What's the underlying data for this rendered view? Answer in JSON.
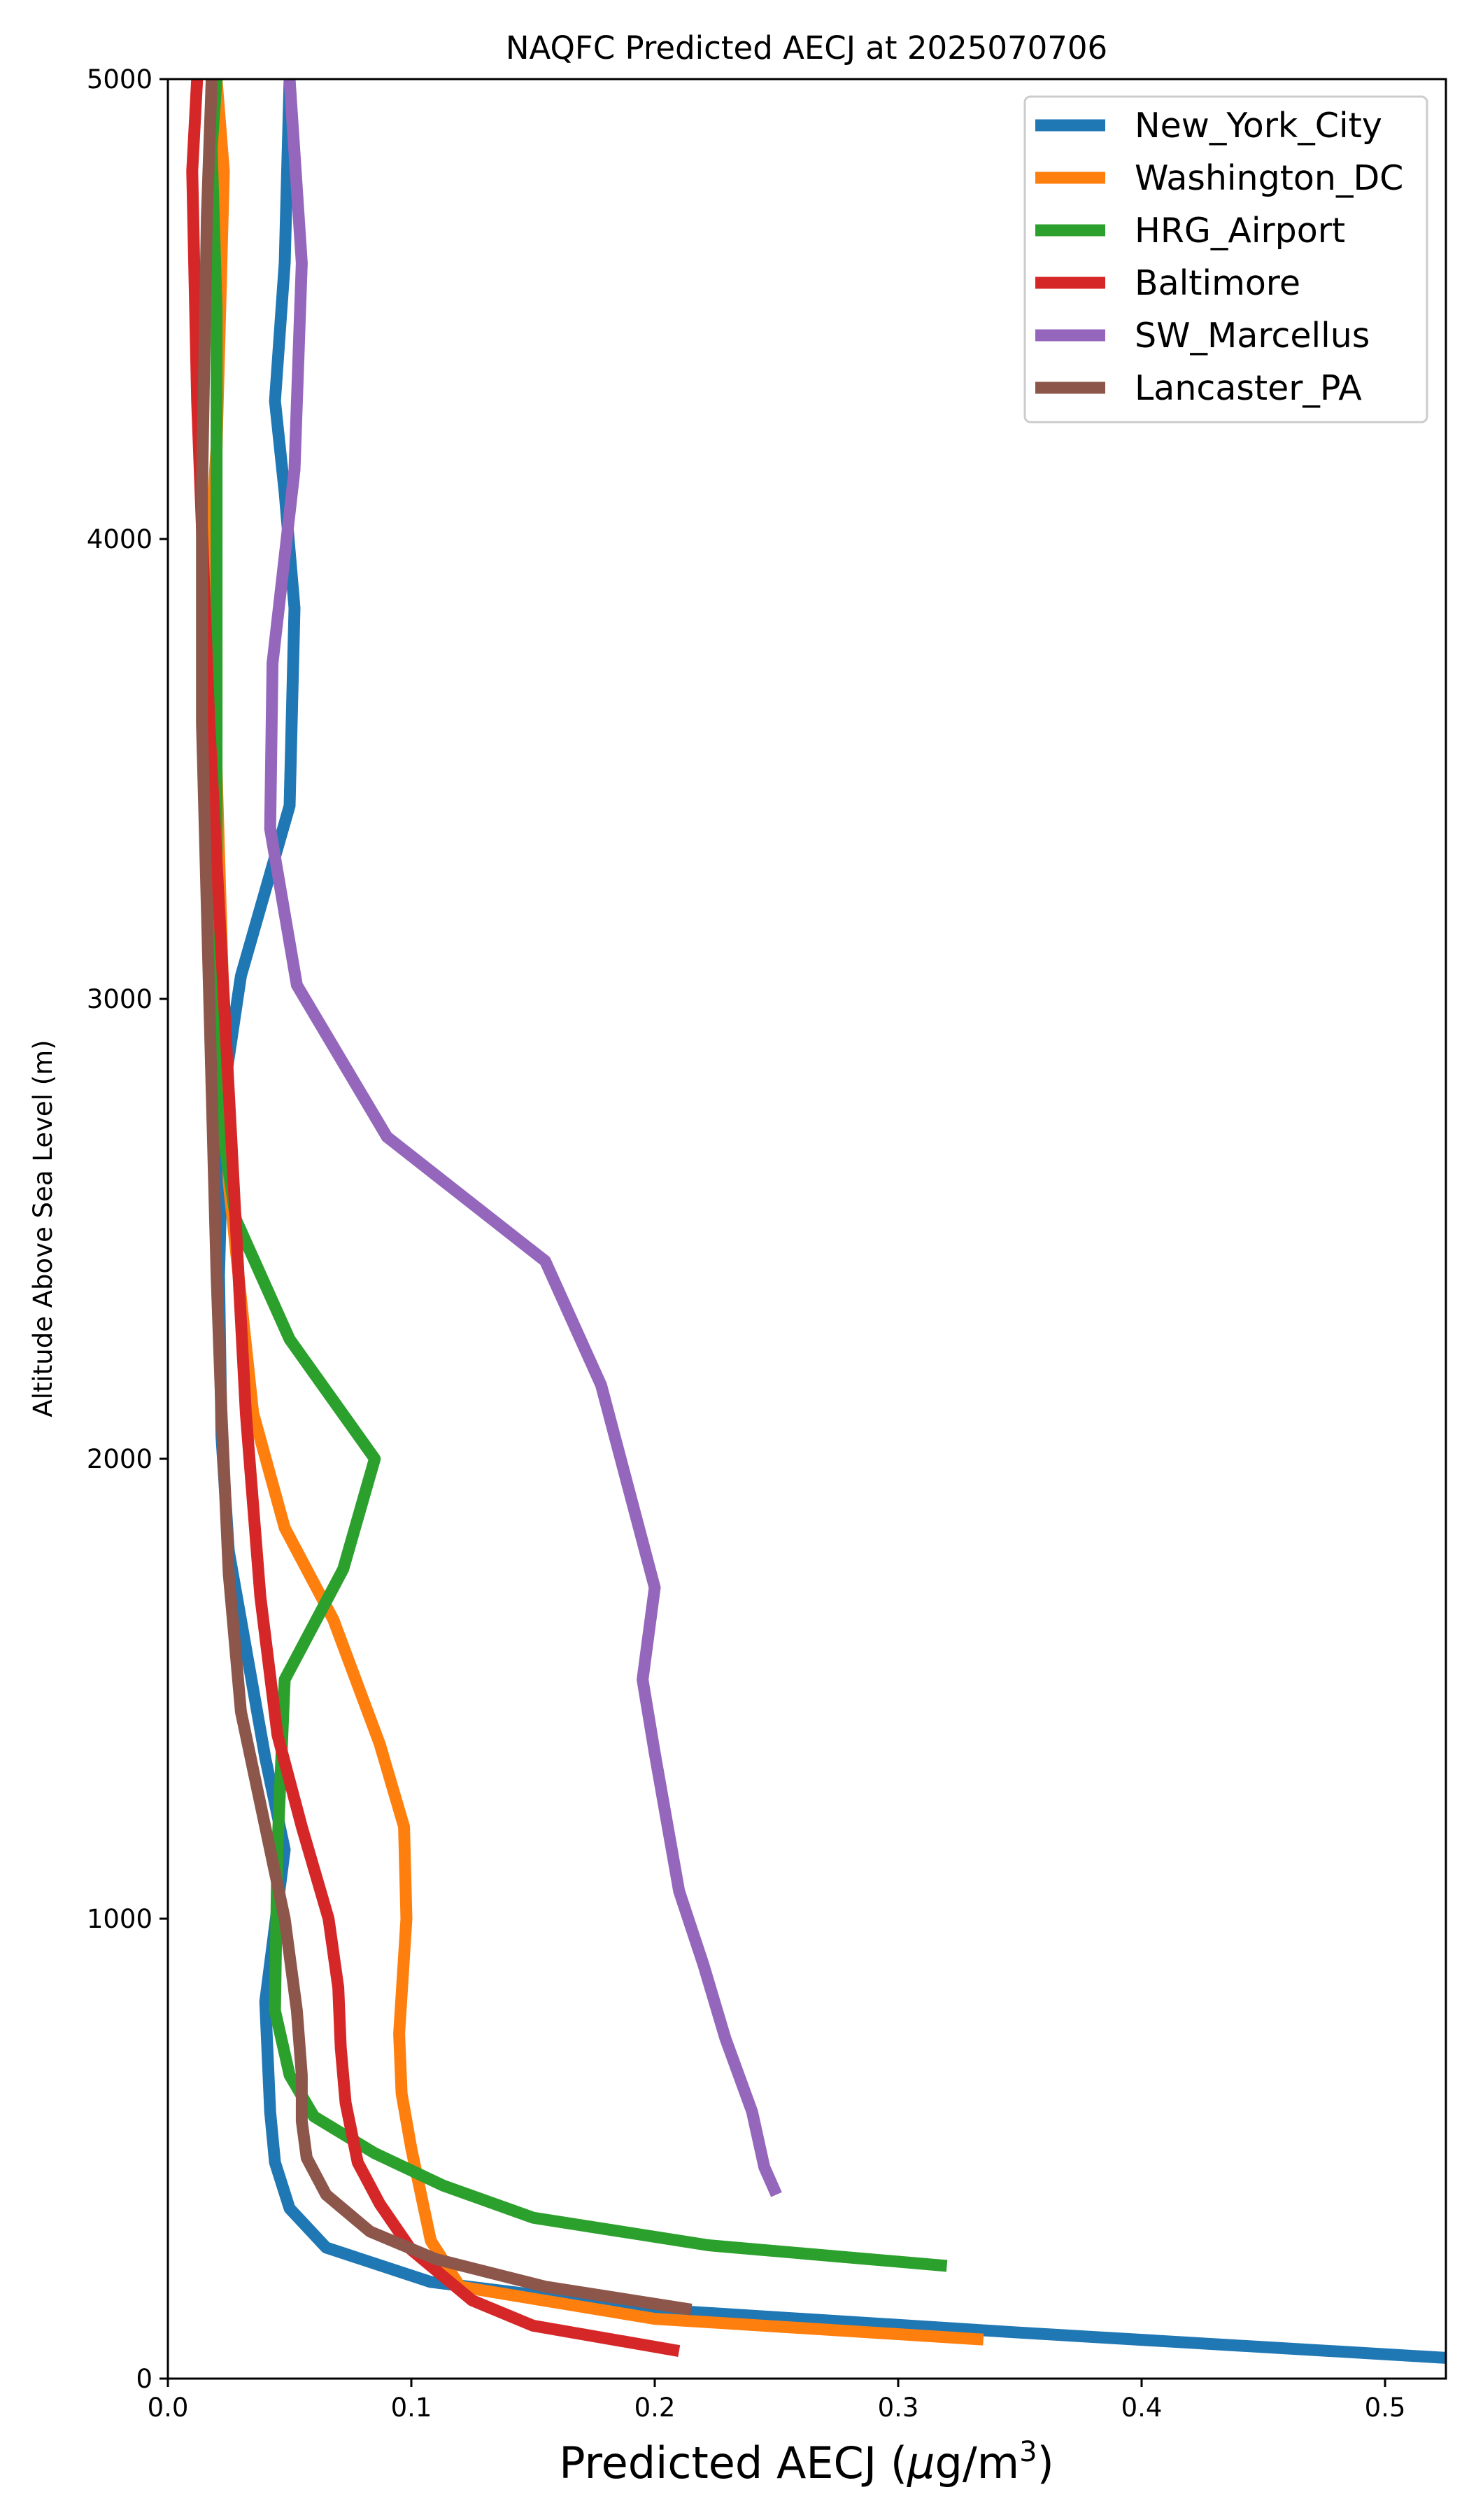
{
  "colors": {
    "New_York_City": "#1f77b4",
    "Washington_DC": "#ff7f0e",
    "HRG_Airport": "#2ca02c",
    "Baltimore": "#d62728",
    "SW_Marcellus": "#9467bd",
    "Lancaster_PA": "#8c564b"
  },
  "chart_data": {
    "type": "line",
    "title": "NAQFC Predicted AECJ at 2025070706",
    "xlabel_main": "Predicted AECJ (",
    "xlabel_mu": "μ",
    "xlabel_unit": "g/m",
    "xlabel_sup": "3",
    "xlabel_close": ")",
    "ylabel": "Altitude Above Sea Level (m)",
    "xlim": [
      0,
      0.525
    ],
    "ylim": [
      0,
      5000
    ],
    "xticks": [
      "0.0",
      "0.1",
      "0.2",
      "0.3",
      "0.4",
      "0.5"
    ],
    "yticks": [
      "0",
      "1000",
      "2000",
      "3000",
      "4000",
      "5000"
    ],
    "grid": false,
    "legend_position": "top-right",
    "series": [
      {
        "name": "New_York_City",
        "color_key": "New_York_City",
        "points": [
          [
            0.525,
            45
          ],
          [
            0.35,
            100
          ],
          [
            0.2,
            150
          ],
          [
            0.108,
            210
          ],
          [
            0.065,
            285
          ],
          [
            0.05,
            370
          ],
          [
            0.044,
            470
          ],
          [
            0.042,
            580
          ],
          [
            0.04,
            820
          ],
          [
            0.048,
            1150
          ],
          [
            0.04,
            1350
          ],
          [
            0.025,
            1800
          ],
          [
            0.022,
            2050
          ],
          [
            0.021,
            2400
          ],
          [
            0.023,
            2800
          ],
          [
            0.03,
            3050
          ],
          [
            0.05,
            3420
          ],
          [
            0.052,
            3850
          ],
          [
            0.048,
            4100
          ],
          [
            0.044,
            4300
          ],
          [
            0.048,
            4600
          ],
          [
            0.05,
            5000
          ]
        ]
      },
      {
        "name": "Washington_DC",
        "color_key": "Washington_DC",
        "points": [
          [
            0.335,
            85
          ],
          [
            0.2,
            130
          ],
          [
            0.12,
            200
          ],
          [
            0.108,
            300
          ],
          [
            0.1,
            500
          ],
          [
            0.096,
            620
          ],
          [
            0.095,
            750
          ],
          [
            0.098,
            1000
          ],
          [
            0.097,
            1200
          ],
          [
            0.087,
            1380
          ],
          [
            0.068,
            1650
          ],
          [
            0.048,
            1850
          ],
          [
            0.035,
            2100
          ],
          [
            0.025,
            2600
          ],
          [
            0.02,
            3500
          ],
          [
            0.017,
            3950
          ],
          [
            0.02,
            4200
          ],
          [
            0.023,
            4800
          ],
          [
            0.02,
            5000
          ]
        ]
      },
      {
        "name": "HRG_Airport",
        "color_key": "HRG_Airport",
        "points": [
          [
            0.32,
            245
          ],
          [
            0.222,
            290
          ],
          [
            0.15,
            350
          ],
          [
            0.113,
            420
          ],
          [
            0.085,
            490
          ],
          [
            0.06,
            570
          ],
          [
            0.05,
            660
          ],
          [
            0.044,
            800
          ],
          [
            0.045,
            1150
          ],
          [
            0.048,
            1520
          ],
          [
            0.072,
            1760
          ],
          [
            0.085,
            2000
          ],
          [
            0.05,
            2260
          ],
          [
            0.028,
            2520
          ],
          [
            0.02,
            2800
          ],
          [
            0.02,
            4500
          ],
          [
            0.018,
            4850
          ],
          [
            0.02,
            5000
          ]
        ]
      },
      {
        "name": "Baltimore",
        "color_key": "Baltimore",
        "points": [
          [
            0.21,
            60
          ],
          [
            0.15,
            115
          ],
          [
            0.125,
            170
          ],
          [
            0.1,
            280
          ],
          [
            0.087,
            380
          ],
          [
            0.078,
            470
          ],
          [
            0.073,
            600
          ],
          [
            0.071,
            720
          ],
          [
            0.07,
            850
          ],
          [
            0.066,
            1000
          ],
          [
            0.055,
            1200
          ],
          [
            0.045,
            1400
          ],
          [
            0.038,
            1700
          ],
          [
            0.032,
            2100
          ],
          [
            0.026,
            2700
          ],
          [
            0.017,
            3600
          ],
          [
            0.012,
            4300
          ],
          [
            0.01,
            4800
          ],
          [
            0.012,
            5000
          ]
        ]
      },
      {
        "name": "SW_Marcellus",
        "color_key": "SW_Marcellus",
        "points": [
          [
            0.25,
            400
          ],
          [
            0.245,
            460
          ],
          [
            0.24,
            580
          ],
          [
            0.229,
            740
          ],
          [
            0.22,
            900
          ],
          [
            0.21,
            1060
          ],
          [
            0.2,
            1360
          ],
          [
            0.195,
            1520
          ],
          [
            0.2,
            1720
          ],
          [
            0.178,
            2160
          ],
          [
            0.155,
            2430
          ],
          [
            0.09,
            2700
          ],
          [
            0.053,
            3030
          ],
          [
            0.042,
            3370
          ],
          [
            0.043,
            3730
          ],
          [
            0.052,
            4150
          ],
          [
            0.055,
            4600
          ],
          [
            0.05,
            5000
          ]
        ]
      },
      {
        "name": "Lancaster_PA",
        "color_key": "Lancaster_PA",
        "points": [
          [
            0.215,
            150
          ],
          [
            0.155,
            200
          ],
          [
            0.11,
            260
          ],
          [
            0.083,
            320
          ],
          [
            0.065,
            400
          ],
          [
            0.057,
            480
          ],
          [
            0.055,
            560
          ],
          [
            0.055,
            660
          ],
          [
            0.053,
            800
          ],
          [
            0.048,
            1000
          ],
          [
            0.038,
            1250
          ],
          [
            0.03,
            1450
          ],
          [
            0.025,
            1750
          ],
          [
            0.022,
            2100
          ],
          [
            0.02,
            2400
          ],
          [
            0.018,
            2800
          ],
          [
            0.014,
            3600
          ],
          [
            0.014,
            4100
          ],
          [
            0.016,
            4700
          ],
          [
            0.018,
            5000
          ]
        ]
      }
    ]
  }
}
